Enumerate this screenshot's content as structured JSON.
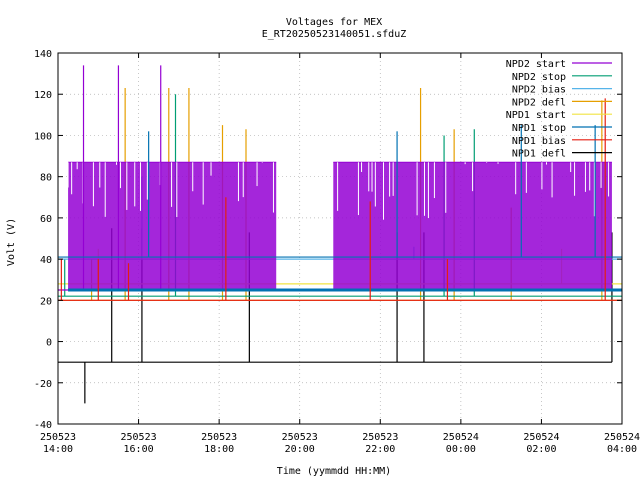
{
  "chart_data": {
    "type": "line",
    "title": "Voltages for MEX",
    "subtitle": "E_RT20250523140051.sfduZ",
    "xlabel": "Time (yymmdd HH:MM)",
    "ylabel": "Volt (V)",
    "ylim": [
      -40,
      140
    ],
    "xlim": [
      "2025-05-23 14:00",
      "2025-05-24 04:00"
    ],
    "grid": true,
    "legend_position": "top-right",
    "y_ticks": [
      "-40",
      "-20",
      "0",
      "20",
      "40",
      "60",
      "80",
      "100",
      "120",
      "140"
    ],
    "x_ticks": [
      {
        "date": "250523",
        "time": "14:00"
      },
      {
        "date": "250523",
        "time": "16:00"
      },
      {
        "date": "250523",
        "time": "18:00"
      },
      {
        "date": "250523",
        "time": "20:00"
      },
      {
        "date": "250523",
        "time": "22:00"
      },
      {
        "date": "250524",
        "time": "00:00"
      },
      {
        "date": "250524",
        "time": "02:00"
      },
      {
        "date": "250524",
        "time": "04:00"
      }
    ],
    "series": [
      {
        "name": "NPD2 start",
        "color": "#9400d3",
        "baseline": 25,
        "bands": [
          {
            "x0": "2025-05-23 14:15",
            "x1": "2025-05-23 19:25",
            "low": 25,
            "high": 87
          },
          {
            "x0": "2025-05-23 20:50",
            "x1": "2025-05-24 03:45",
            "low": 25,
            "high": 87
          }
        ],
        "spikes": [
          {
            "x": "2025-05-23 14:38",
            "y": 134
          },
          {
            "x": "2025-05-23 15:30",
            "y": 134
          },
          {
            "x": "2025-05-23 16:33",
            "y": 134
          }
        ]
      },
      {
        "name": "NPD2 stop",
        "color": "#009e73",
        "baseline": 22,
        "spikes": [
          {
            "x": "2025-05-23 16:55",
            "y": 120
          },
          {
            "x": "2025-05-24 00:20",
            "y": 103
          },
          {
            "x": "2025-05-23 23:35",
            "y": 100
          },
          {
            "x": "2025-05-23 14:10",
            "y": 40
          }
        ]
      },
      {
        "name": "NPD2 bias",
        "color": "#56b4e9",
        "baseline": 40,
        "spikes": [
          {
            "x": "2025-05-23 16:05",
            "y": 80
          },
          {
            "x": "2025-05-23 22:50",
            "y": 46
          }
        ]
      },
      {
        "name": "NPD2 defl",
        "color": "#e69f00",
        "baseline": 20,
        "spikes": [
          {
            "x": "2025-05-23 15:40",
            "y": 123
          },
          {
            "x": "2025-05-23 16:45",
            "y": 123
          },
          {
            "x": "2025-05-23 17:15",
            "y": 123
          },
          {
            "x": "2025-05-23 23:00",
            "y": 123
          },
          {
            "x": "2025-05-23 18:05",
            "y": 105
          },
          {
            "x": "2025-05-23 18:40",
            "y": 103
          },
          {
            "x": "2025-05-23 23:50",
            "y": 103
          },
          {
            "x": "2025-05-24 03:30",
            "y": 117
          },
          {
            "x": "2025-05-24 01:15",
            "y": 65
          },
          {
            "x": "2025-05-23 14:50",
            "y": 40
          }
        ]
      },
      {
        "name": "NPD1 start",
        "color": "#f0e442",
        "baseline": 28,
        "spikes": [
          {
            "x": "2025-05-23 15:00",
            "y": 45
          },
          {
            "x": "2025-05-24 02:30",
            "y": 45
          }
        ]
      },
      {
        "name": "NPD1 stop",
        "color": "#0072b2",
        "baseline": 41,
        "bands": [
          {
            "x0": "2025-05-23 14:15",
            "x1": "2025-05-24 04:00",
            "low": 25,
            "high": 25
          }
        ],
        "spikes": [
          {
            "x": "2025-05-23 16:15",
            "y": 102
          },
          {
            "x": "2025-05-23 22:25",
            "y": 102
          },
          {
            "x": "2025-05-24 01:30",
            "y": 105
          },
          {
            "x": "2025-05-24 03:20",
            "y": 105
          }
        ]
      },
      {
        "name": "NPD1 bias",
        "color": "#e51e10",
        "baseline": 20,
        "spikes": [
          {
            "x": "2025-05-23 14:05",
            "y": 40
          },
          {
            "x": "2025-05-23 15:00",
            "y": 40
          },
          {
            "x": "2025-05-23 15:45",
            "y": 38
          },
          {
            "x": "2025-05-23 18:10",
            "y": 70
          },
          {
            "x": "2025-05-23 21:45",
            "y": 68
          },
          {
            "x": "2025-05-24 03:35",
            "y": 118
          },
          {
            "x": "2025-05-23 23:40",
            "y": 40
          }
        ]
      },
      {
        "name": "NPD1 defl",
        "color": "#000000",
        "baseline": -10,
        "spikes": [
          {
            "x": "2025-05-23 14:40",
            "y": -30
          },
          {
            "x": "2025-05-23 15:20",
            "y": 55
          },
          {
            "x": "2025-05-23 16:05",
            "y": 55
          },
          {
            "x": "2025-05-23 18:45",
            "y": 53
          },
          {
            "x": "2025-05-23 22:25",
            "y": 53
          },
          {
            "x": "2025-05-23 23:05",
            "y": 53
          },
          {
            "x": "2025-05-24 03:45",
            "y": 53
          }
        ],
        "x_start": "2025-05-23 14:00",
        "x_end": "2025-05-24 03:45"
      }
    ]
  }
}
